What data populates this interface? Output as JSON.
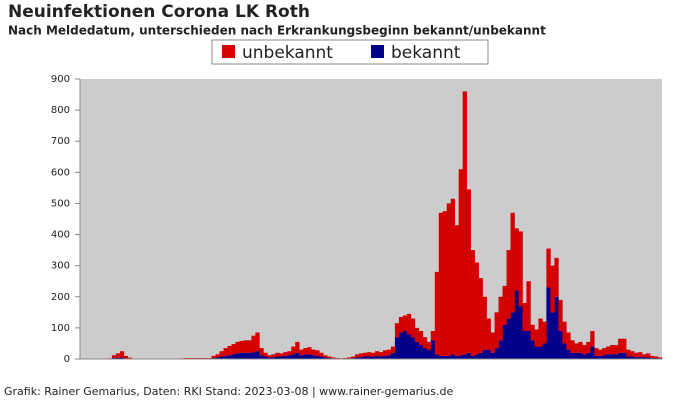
{
  "chart_data": {
    "type": "stacked_bar",
    "title": "Neuinfektionen Corona LK Roth",
    "subtitle": "Nach Meldedatum, unterschieden nach Erkrankungsbeginn bekannt/unbekannt",
    "footer": "Grafik: Rainer Gemarius, Daten: RKI Stand: 2023-03-08 | www.rainer-gemarius.de",
    "categories": [
      null,
      null,
      null,
      null,
      null,
      null,
      null,
      null,
      null,
      null,
      null,
      null,
      null,
      null,
      null,
      null,
      null,
      null,
      null,
      null,
      null,
      null,
      null,
      null,
      null,
      null,
      null,
      null,
      null,
      null,
      null,
      null,
      null,
      null,
      null,
      null,
      null,
      null,
      null,
      null,
      null,
      null,
      null,
      null,
      null,
      null,
      null,
      null,
      null,
      null,
      null,
      null,
      null,
      null,
      null,
      null,
      null,
      null,
      null,
      null,
      null,
      null,
      null,
      null,
      null,
      null,
      null,
      null,
      null,
      null,
      null,
      null,
      null,
      null,
      null,
      null,
      null,
      null,
      null,
      null,
      null,
      null,
      null,
      null,
      null,
      null,
      null,
      null,
      null,
      null,
      null,
      null,
      null,
      null,
      null,
      null,
      null,
      null,
      null,
      null,
      null,
      null,
      null,
      null,
      null,
      null,
      null,
      null,
      null,
      null,
      null,
      null,
      null,
      null,
      null,
      null,
      null,
      null,
      null,
      null,
      null,
      null,
      null,
      null,
      null,
      null,
      null,
      null,
      null,
      null,
      null,
      null,
      null,
      null,
      null,
      null,
      null,
      null,
      null,
      null,
      null,
      null,
      null,
      null,
      null,
      null
    ],
    "series": [
      {
        "name": "unbekannt",
        "color": "#d40000",
        "values": [
          0,
          0,
          0,
          0,
          0,
          0,
          0,
          1,
          9,
          14,
          20,
          8,
          3,
          0,
          0,
          0,
          0,
          0,
          0,
          0,
          0,
          0,
          0,
          0,
          0,
          1,
          2,
          2,
          2,
          2,
          2,
          2,
          2,
          7,
          10,
          17,
          25,
          30,
          33,
          37,
          38,
          40,
          40,
          53,
          60,
          23,
          12,
          7,
          9,
          12,
          10,
          12,
          13,
          25,
          35,
          18,
          20,
          23,
          18,
          18,
          12,
          7,
          5,
          3,
          2,
          1,
          2,
          3,
          5,
          10,
          12,
          12,
          14,
          12,
          15,
          14,
          18,
          18,
          20,
          45,
          50,
          50,
          65,
          60,
          45,
          45,
          35,
          25,
          30,
          265,
          460,
          465,
          490,
          500,
          420,
          598,
          845,
          525,
          340,
          295,
          240,
          170,
          100,
          65,
          115,
          140,
          125,
          220,
          320,
          200,
          240,
          90,
          160,
          50,
          55,
          90,
          70,
          125,
          150,
          125,
          100,
          70,
          55,
          40,
          30,
          35,
          30,
          35,
          50,
          25,
          20,
          23,
          25,
          30,
          30,
          45,
          45,
          22,
          17,
          14,
          16,
          10,
          13,
          7,
          5,
          3
        ]
      },
      {
        "name": "bekannt",
        "color": "#00008b",
        "values": [
          0,
          0,
          0,
          0,
          0,
          0,
          0,
          1,
          3,
          4,
          5,
          2,
          1,
          0,
          0,
          0,
          0,
          0,
          0,
          0,
          0,
          0,
          0,
          0,
          0,
          1,
          1,
          1,
          1,
          1,
          1,
          1,
          1,
          3,
          5,
          8,
          10,
          12,
          15,
          18,
          20,
          20,
          20,
          22,
          25,
          12,
          8,
          5,
          6,
          8,
          8,
          10,
          12,
          15,
          20,
          12,
          15,
          15,
          12,
          10,
          8,
          5,
          3,
          2,
          1,
          1,
          1,
          2,
          3,
          5,
          6,
          8,
          8,
          8,
          10,
          8,
          10,
          12,
          20,
          70,
          85,
          90,
          80,
          70,
          55,
          45,
          35,
          30,
          60,
          15,
          10,
          10,
          10,
          15,
          10,
          12,
          15,
          20,
          10,
          15,
          20,
          30,
          30,
          20,
          35,
          60,
          110,
          130,
          150,
          220,
          170,
          90,
          90,
          60,
          40,
          40,
          50,
          230,
          150,
          200,
          90,
          50,
          30,
          20,
          20,
          20,
          15,
          20,
          40,
          10,
          10,
          12,
          15,
          15,
          15,
          20,
          20,
          8,
          8,
          6,
          6,
          5,
          5,
          3,
          3,
          2
        ]
      }
    ],
    "ylim": [
      0,
      900
    ],
    "yticks": [
      0,
      100,
      200,
      300,
      400,
      500,
      600,
      700,
      800,
      900
    ],
    "plot_background": "#cccccc",
    "grid": false
  }
}
